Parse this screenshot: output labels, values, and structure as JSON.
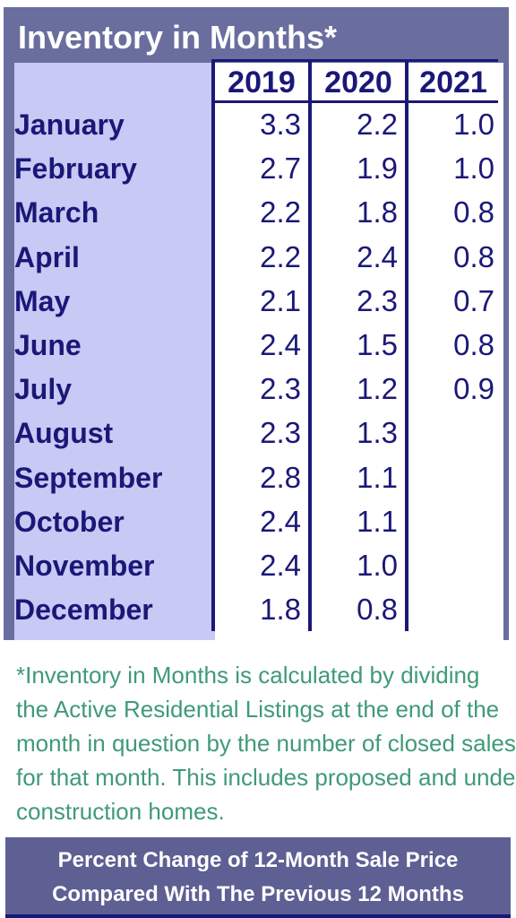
{
  "table": {
    "title": "Inventory in Months*",
    "years": [
      "2019",
      "2020",
      "2021"
    ],
    "rows": [
      {
        "month": "January",
        "values": [
          "3.3",
          "2.2",
          "1.0"
        ]
      },
      {
        "month": "February",
        "values": [
          "2.7",
          "1.9",
          "1.0"
        ]
      },
      {
        "month": "March",
        "values": [
          "2.2",
          "1.8",
          "0.8"
        ]
      },
      {
        "month": "April",
        "values": [
          "2.2",
          "2.4",
          "0.8"
        ]
      },
      {
        "month": "May",
        "values": [
          "2.1",
          "2.3",
          "0.7"
        ]
      },
      {
        "month": "June",
        "values": [
          "2.4",
          "1.5",
          "0.8"
        ]
      },
      {
        "month": "July",
        "values": [
          "2.3",
          "1.2",
          "0.9"
        ]
      },
      {
        "month": "August",
        "values": [
          "2.3",
          "1.3",
          ""
        ]
      },
      {
        "month": "September",
        "values": [
          "2.8",
          "1.1",
          ""
        ]
      },
      {
        "month": "October",
        "values": [
          "2.4",
          "1.1",
          ""
        ]
      },
      {
        "month": "November",
        "values": [
          "2.4",
          "1.0",
          ""
        ]
      },
      {
        "month": "December",
        "values": [
          "1.8",
          "0.8",
          ""
        ]
      }
    ]
  },
  "footnote": {
    "lines": [
      "*Inventory in Months is calculated by dividing",
      "the Active Residential Listings at the end of the",
      "month in question by the number of closed sales",
      "for that month. This includes proposed and under",
      "construction homes."
    ]
  },
  "next_section": {
    "line1": "Percent Change of 12-Month Sale Price",
    "line2": "Compared With The Previous 12 Months"
  },
  "colors": {
    "panel": "#6a6e9e",
    "label_column": "#c8c9f4",
    "text_navy": "#1a1877",
    "note_green": "#3f9a77"
  }
}
